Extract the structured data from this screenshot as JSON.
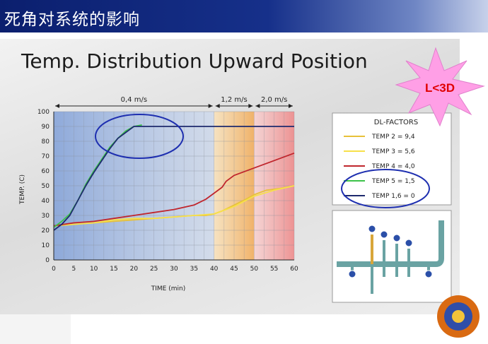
{
  "slide": {
    "title": "死角对系统的影响",
    "badge": "L<3D"
  },
  "colors": {
    "title_bar": "#0b1f6e",
    "badge_fill": "#ff9fe6",
    "badge_text": "#e00000",
    "circle": "#1e2fb0",
    "zone_blue": "#a9c0e8",
    "zone_orange": "#f7c982",
    "zone_red": "#f4a7a7"
  },
  "chart_data": {
    "type": "line",
    "title": "Temp. Distribution Upward Position",
    "xlabel": "TIME (min)",
    "ylabel": "TEMP. (C)",
    "xlim": [
      0,
      60
    ],
    "ylim": [
      0,
      100
    ],
    "xticks": [
      0,
      5,
      10,
      15,
      20,
      25,
      30,
      35,
      40,
      45,
      50,
      55,
      60
    ],
    "yticks": [
      0,
      10,
      20,
      30,
      40,
      50,
      60,
      70,
      80,
      90,
      100
    ],
    "grid": true,
    "zones": [
      {
        "label": "0,4 m/s",
        "from": 0,
        "to": 40,
        "color": "#a9c0e8"
      },
      {
        "label": "1,2 m/s",
        "from": 40,
        "to": 50,
        "color": "#f7c982"
      },
      {
        "label": "2,0 m/s",
        "from": 50,
        "to": 60,
        "color": "#f4a7a7"
      }
    ],
    "legend_title": "DL-FACTORS",
    "legend_position": "right",
    "series": [
      {
        "name": "TEMP 2 = 9,4",
        "color": "#e8c13a",
        "points": [
          [
            0,
            23
          ],
          [
            5,
            24
          ],
          [
            10,
            25
          ],
          [
            15,
            26
          ],
          [
            20,
            27
          ],
          [
            25,
            28
          ],
          [
            30,
            29
          ],
          [
            35,
            30
          ],
          [
            38,
            30
          ],
          [
            40,
            31
          ],
          [
            42,
            33
          ],
          [
            45,
            37
          ],
          [
            48,
            41
          ],
          [
            50,
            44
          ],
          [
            53,
            47
          ],
          [
            56,
            48
          ],
          [
            60,
            50
          ]
        ]
      },
      {
        "name": "TEMP 3 = 5,6",
        "color": "#f7e04a",
        "points": [
          [
            0,
            23
          ],
          [
            5,
            24
          ],
          [
            10,
            25
          ],
          [
            15,
            27
          ],
          [
            20,
            28
          ],
          [
            25,
            28
          ],
          [
            30,
            29
          ],
          [
            35,
            30
          ],
          [
            40,
            31
          ],
          [
            45,
            36
          ],
          [
            50,
            43
          ],
          [
            55,
            47
          ],
          [
            60,
            50
          ]
        ]
      },
      {
        "name": "TEMP 4 = 4,0",
        "color": "#c0262d",
        "points": [
          [
            0,
            23
          ],
          [
            5,
            25
          ],
          [
            10,
            26
          ],
          [
            15,
            28
          ],
          [
            20,
            30
          ],
          [
            25,
            32
          ],
          [
            30,
            34
          ],
          [
            35,
            37
          ],
          [
            38,
            41
          ],
          [
            40,
            45
          ],
          [
            42,
            49
          ],
          [
            43,
            53
          ],
          [
            45,
            57
          ],
          [
            50,
            62
          ],
          [
            55,
            67
          ],
          [
            60,
            72
          ]
        ]
      },
      {
        "name": "TEMP 5 = 1,5",
        "color": "#3cc24a",
        "points": [
          [
            0,
            22
          ],
          [
            2,
            26
          ],
          [
            4,
            31
          ],
          [
            6,
            40
          ],
          [
            8,
            51
          ],
          [
            10,
            60
          ],
          [
            12,
            68
          ],
          [
            14,
            76
          ],
          [
            16,
            82
          ],
          [
            18,
            87
          ],
          [
            20,
            90
          ],
          [
            22,
            91
          ]
        ]
      },
      {
        "name": "TEMP 1,6 = 0",
        "color": "#1e2a6e",
        "points": [
          [
            0,
            20
          ],
          [
            2,
            24
          ],
          [
            4,
            30
          ],
          [
            6,
            40
          ],
          [
            8,
            50
          ],
          [
            10,
            59
          ],
          [
            12,
            67
          ],
          [
            14,
            75
          ],
          [
            16,
            82
          ],
          [
            18,
            86
          ],
          [
            19,
            88
          ],
          [
            20,
            90
          ],
          [
            30,
            90
          ],
          [
            40,
            90
          ],
          [
            50,
            90
          ],
          [
            60,
            90
          ]
        ]
      }
    ]
  }
}
